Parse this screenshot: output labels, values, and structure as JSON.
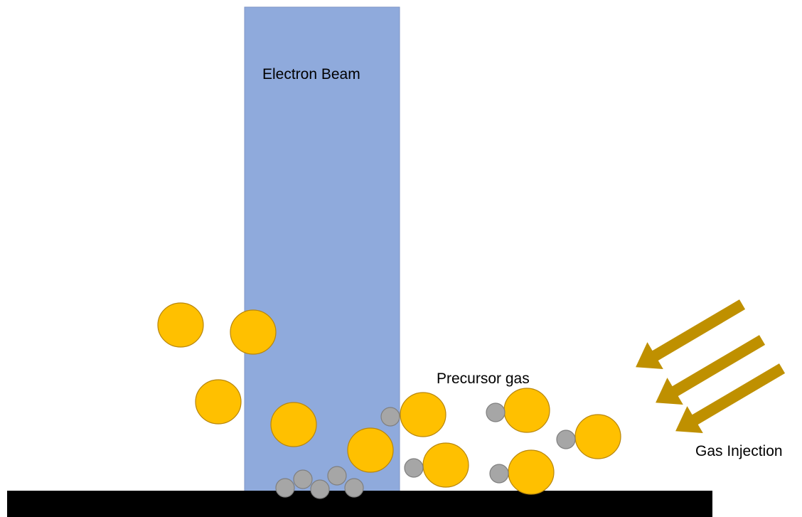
{
  "labels": {
    "beam": "Electron Beam",
    "precursor": "Precursor gas",
    "injection": "Gas Injection"
  },
  "colors": {
    "beam_fill": "#8FAADC",
    "beam_stroke": "#7F96C6",
    "precursor_fill": "#FFC000",
    "precursor_stroke": "#B8860B",
    "ligand_fill": "#A6A6A6",
    "ligand_stroke": "#7F7F7F",
    "arrow_fill": "#BF9000",
    "substrate_fill": "#000000"
  },
  "icons": {
    "arrows": "gas-injection-arrow",
    "large_molecule": "precursor-molecule",
    "small_molecule": "ligand-atom"
  }
}
